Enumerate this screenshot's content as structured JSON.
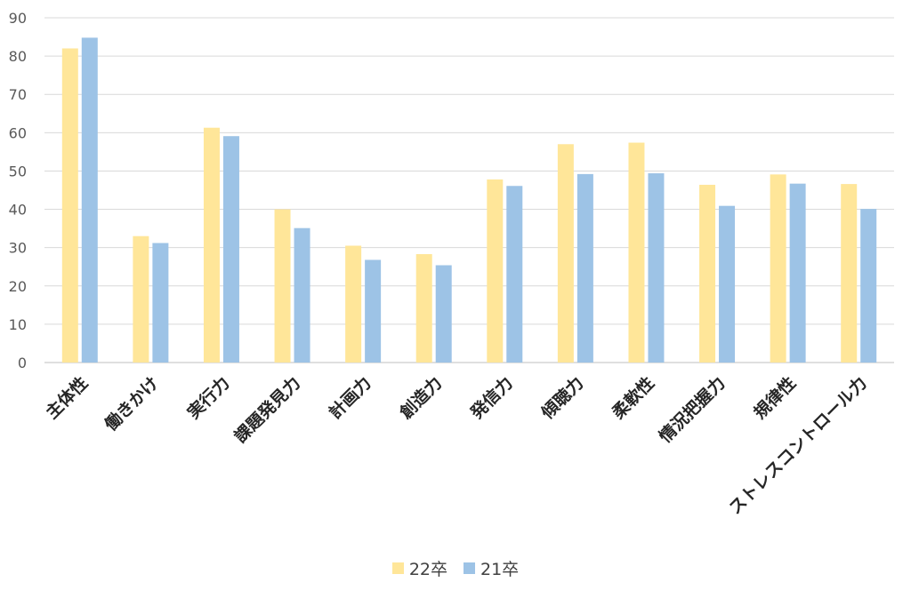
{
  "chart_data": {
    "type": "bar",
    "categories": [
      "主体性",
      "働きかけ",
      "実行力",
      "課題発見力",
      "計画力",
      "創造力",
      "発信力",
      "傾聴力",
      "柔軟性",
      "情況把握力",
      "規律性",
      "ストレスコントロール力"
    ],
    "series": [
      {
        "name": "22卒",
        "color": "#FFE699",
        "values": [
          82,
          33,
          61.3,
          40,
          30.5,
          28.3,
          47.8,
          57,
          57.4,
          46.4,
          49.1,
          46.6
        ]
      },
      {
        "name": "21卒",
        "color": "#9DC3E6",
        "values": [
          84.8,
          31.2,
          59.1,
          35.1,
          26.8,
          25.4,
          46.1,
          49.2,
          49.4,
          40.9,
          46.7,
          40.1
        ]
      }
    ],
    "yticks": [
      "0",
      "10",
      "20",
      "30",
      "40",
      "50",
      "60",
      "70",
      "80",
      "90"
    ],
    "ylim": [
      0,
      90
    ],
    "grid": true,
    "legend_position": "bottom"
  }
}
